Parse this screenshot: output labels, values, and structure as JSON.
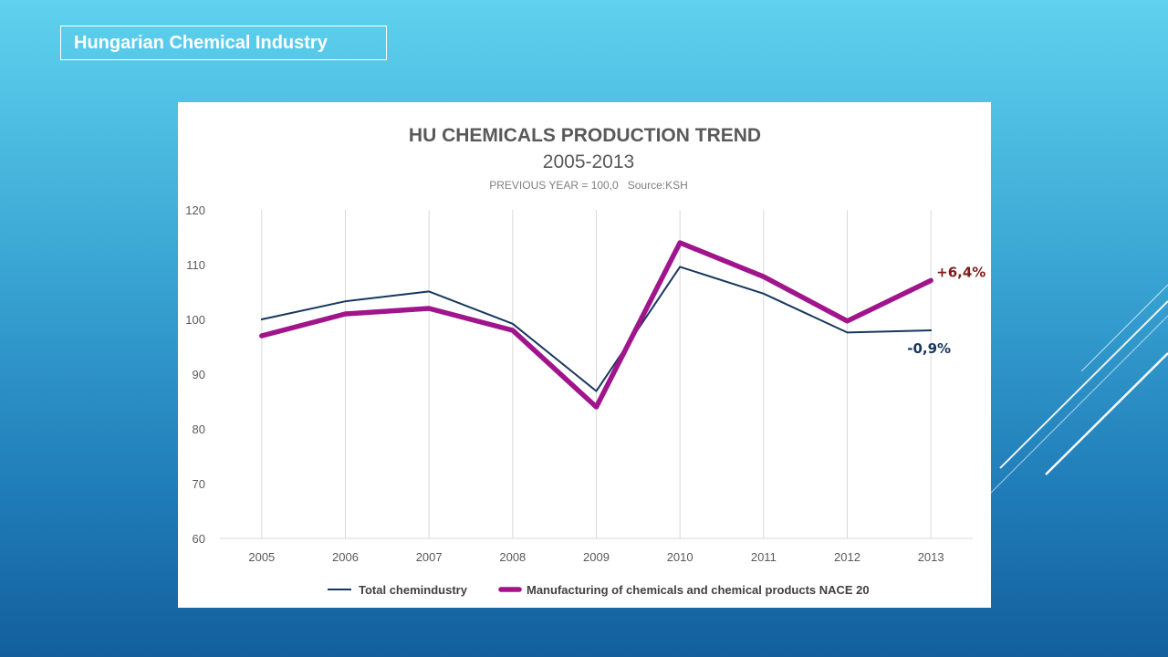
{
  "slide": {
    "title": "Hungarian Chemical Industry"
  },
  "colors": {
    "series_total": "#17375e",
    "series_chem": "#a0148c",
    "chem_annotation": "#7f1c1c",
    "gridline": "#d9d9d9",
    "axis_text": "#595959"
  },
  "chart_data": {
    "type": "line",
    "title": "HU CHEMICALS PRODUCTION TREND",
    "subtitle": "2005-2013",
    "note": "PREVIOUS YEAR = 100,0   Source:KSH",
    "x": [
      "2005",
      "2006",
      "2007",
      "2008",
      "2009",
      "2010",
      "2011",
      "2012",
      "2013"
    ],
    "ylim": [
      60,
      120
    ],
    "yticks": [
      60,
      70,
      80,
      90,
      100,
      110,
      120
    ],
    "grid": "vertical",
    "legend": "bottom",
    "series": [
      {
        "name": "Total chemindustry",
        "values": [
          100.0,
          103.3,
          105.1,
          99.2,
          86.9,
          109.6,
          104.7,
          97.6,
          98.0
        ]
      },
      {
        "name": "Manufacturing of chemicals and chemical products NACE 20",
        "values": [
          97.0,
          101.0,
          102.0,
          98.0,
          84.0,
          114.0,
          107.8,
          99.7,
          107.1
        ]
      }
    ],
    "annotations": [
      {
        "text": "+6,4%",
        "series": 1
      },
      {
        "text": "-0,9%",
        "series": 0
      }
    ]
  }
}
